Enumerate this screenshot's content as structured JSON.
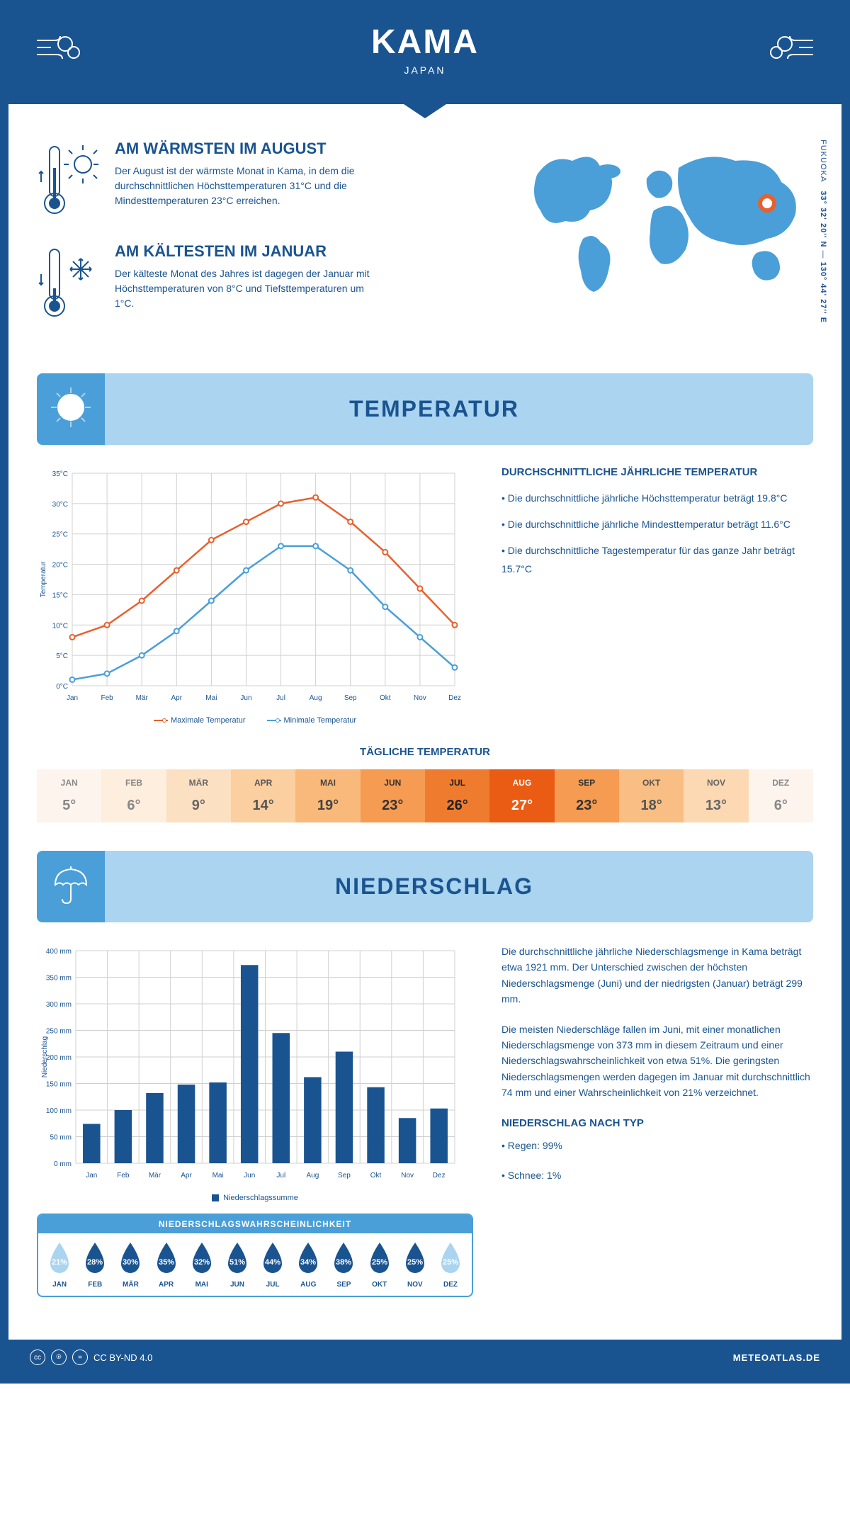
{
  "header": {
    "title": "KAMA",
    "country": "JAPAN"
  },
  "coords": {
    "region": "FUKUOKA",
    "lat": "33° 32' 20'' N",
    "lon": "130° 44' 27'' E"
  },
  "facts": {
    "warm": {
      "title": "AM WÄRMSTEN IM AUGUST",
      "text": "Der August ist der wärmste Monat in Kama, in dem die durchschnittlichen Höchsttemperaturen 31°C und die Mindesttemperaturen 23°C erreichen."
    },
    "cold": {
      "title": "AM KÄLTESTEN IM JANUAR",
      "text": "Der kälteste Monat des Jahres ist dagegen der Januar mit Höchsttemperaturen von 8°C und Tiefsttemperaturen um 1°C."
    }
  },
  "sections": {
    "temp": "TEMPERATUR",
    "precip": "NIEDERSCHLAG"
  },
  "temp_chart": {
    "months": [
      "Jan",
      "Feb",
      "Mär",
      "Apr",
      "Mai",
      "Jun",
      "Jul",
      "Aug",
      "Sep",
      "Okt",
      "Nov",
      "Dez"
    ],
    "max": [
      8,
      10,
      14,
      19,
      24,
      27,
      30,
      31,
      27,
      22,
      16,
      10
    ],
    "min": [
      1,
      2,
      5,
      9,
      14,
      19,
      23,
      23,
      19,
      13,
      8,
      3
    ],
    "ylim": [
      0,
      35
    ],
    "ystep": 5,
    "ylabel": "Temperatur",
    "colors": {
      "max": "#e8602c",
      "min": "#4a9fd8",
      "grid": "#d0d0d0"
    },
    "legend": {
      "max": "Maximale Temperatur",
      "min": "Minimale Temperatur"
    }
  },
  "temp_info": {
    "title": "DURCHSCHNITTLICHE JÄHRLICHE TEMPERATUR",
    "p1": "• Die durchschnittliche jährliche Höchsttemperatur beträgt 19.8°C",
    "p2": "• Die durchschnittliche jährliche Mindesttemperatur beträgt 11.6°C",
    "p3": "• Die durchschnittliche Tagestemperatur für das ganze Jahr beträgt 15.7°C"
  },
  "daily_temp": {
    "title": "TÄGLICHE TEMPERATUR",
    "months": [
      "JAN",
      "FEB",
      "MÄR",
      "APR",
      "MAI",
      "JUN",
      "JUL",
      "AUG",
      "SEP",
      "OKT",
      "NOV",
      "DEZ"
    ],
    "values": [
      "5°",
      "6°",
      "9°",
      "14°",
      "19°",
      "23°",
      "26°",
      "27°",
      "23°",
      "18°",
      "13°",
      "6°"
    ],
    "bg": [
      "#fdf5ed",
      "#fdeedd",
      "#fce0c2",
      "#fbcfa0",
      "#f9b97a",
      "#f59b52",
      "#ef7c2e",
      "#ea5b14",
      "#f59b52",
      "#f9be83",
      "#fcd8b3",
      "#fdf5ed"
    ],
    "fg": [
      "#888",
      "#888",
      "#666",
      "#555",
      "#444",
      "#333",
      "#222",
      "#fff",
      "#333",
      "#555",
      "#666",
      "#888"
    ]
  },
  "precip_chart": {
    "months": [
      "Jan",
      "Feb",
      "Mär",
      "Apr",
      "Mai",
      "Jun",
      "Jul",
      "Aug",
      "Sep",
      "Okt",
      "Nov",
      "Dez"
    ],
    "values": [
      74,
      100,
      132,
      148,
      152,
      373,
      245,
      162,
      210,
      143,
      85,
      103
    ],
    "ylim": [
      0,
      400
    ],
    "ystep": 50,
    "ylabel": "Niederschlag",
    "bar_color": "#1a5490",
    "grid": "#d0d0d0",
    "legend": "Niederschlagssumme"
  },
  "precip_text": {
    "p1": "Die durchschnittliche jährliche Niederschlagsmenge in Kama beträgt etwa 1921 mm. Der Unterschied zwischen der höchsten Niederschlagsmenge (Juni) und der niedrigsten (Januar) beträgt 299 mm.",
    "p2": "Die meisten Niederschläge fallen im Juni, mit einer monatlichen Niederschlagsmenge von 373 mm in diesem Zeitraum und einer Niederschlagswahrscheinlichkeit von etwa 51%. Die geringsten Niederschlagsmengen werden dagegen im Januar mit durchschnittlich 74 mm und einer Wahrscheinlichkeit von 21% verzeichnet.",
    "type_title": "NIEDERSCHLAG NACH TYP",
    "type1": "• Regen: 99%",
    "type2": "• Schnee: 1%"
  },
  "prob": {
    "title": "NIEDERSCHLAGSWAHRSCHEINLICHKEIT",
    "months": [
      "JAN",
      "FEB",
      "MÄR",
      "APR",
      "MAI",
      "JUN",
      "JUL",
      "AUG",
      "SEP",
      "OKT",
      "NOV",
      "DEZ"
    ],
    "values": [
      "21%",
      "28%",
      "30%",
      "35%",
      "32%",
      "51%",
      "44%",
      "34%",
      "38%",
      "25%",
      "25%",
      "25%"
    ],
    "colors": [
      "#aad4ef",
      "#1a5490",
      "#1a5490",
      "#1a5490",
      "#1a5490",
      "#1a5490",
      "#1a5490",
      "#1a5490",
      "#1a5490",
      "#1a5490",
      "#1a5490",
      "#aad4ef"
    ]
  },
  "footer": {
    "license": "CC BY-ND 4.0",
    "site": "METEOATLAS.DE"
  },
  "colors": {
    "primary": "#1a5490",
    "light": "#aad4ef",
    "mid": "#4a9fd8"
  }
}
